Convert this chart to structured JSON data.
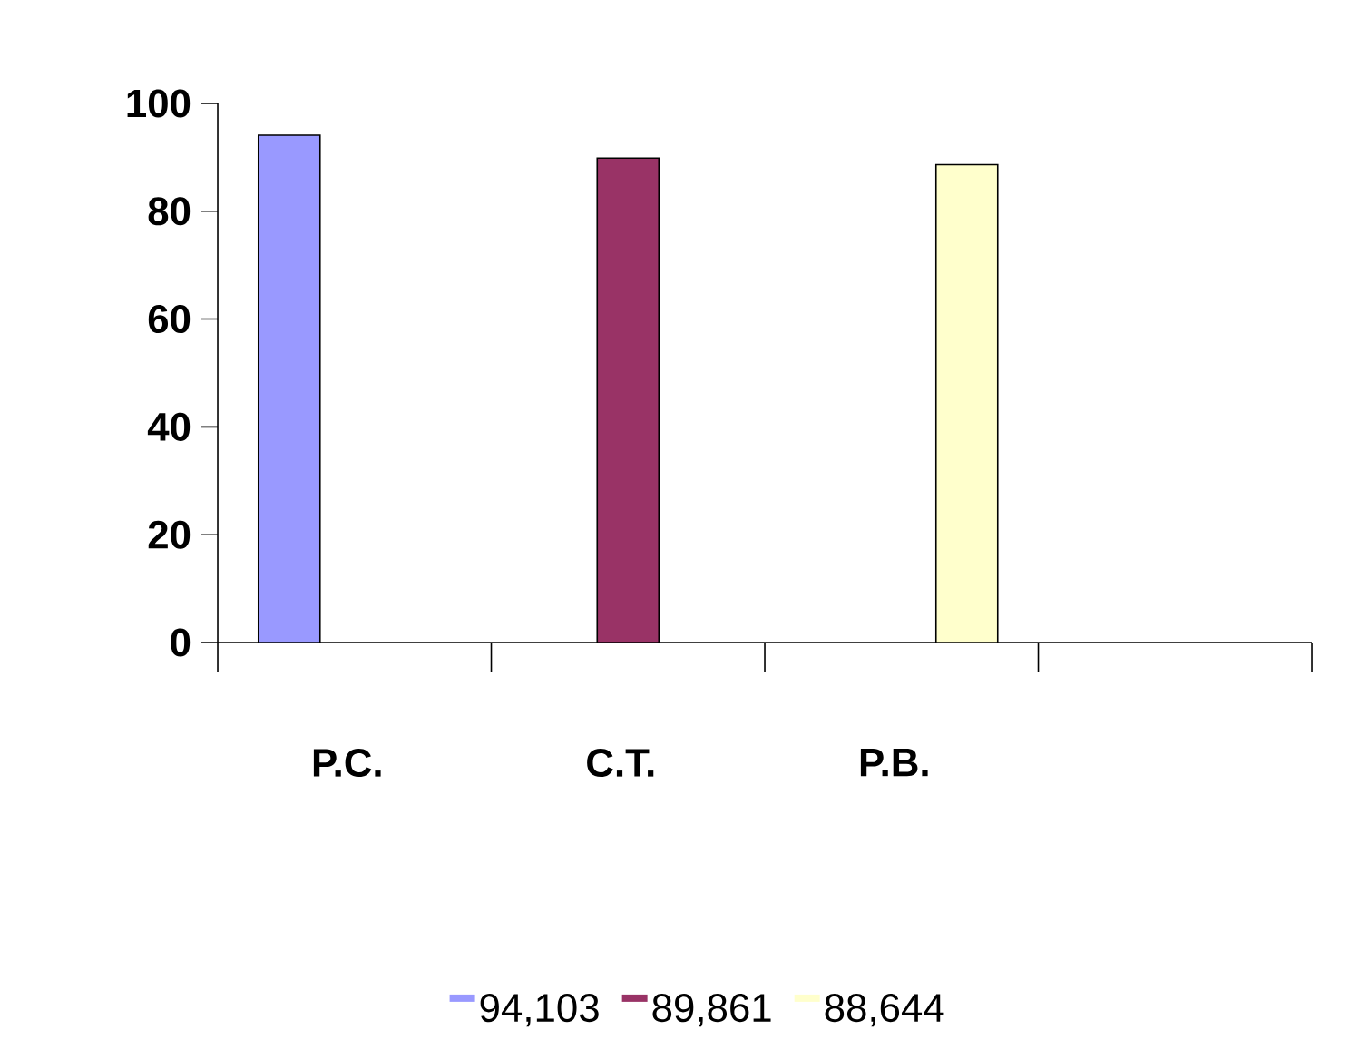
{
  "chart_data": {
    "type": "bar",
    "categories": [
      "P.C.",
      "C.T.",
      "P.B.",
      null
    ],
    "series": [
      {
        "name": "94,103",
        "color": "#9999ff",
        "values": [
          94.103,
          null,
          null,
          null
        ]
      },
      {
        "name": "89,861",
        "color": "#993366",
        "values": [
          null,
          89.861,
          null,
          null
        ]
      },
      {
        "name": "88,644",
        "color": "#ffffcc",
        "values": [
          null,
          null,
          88.644,
          null
        ]
      }
    ],
    "ylim": [
      0,
      100
    ],
    "yticks": [
      0,
      20,
      40,
      60,
      80,
      100
    ],
    "legend": "bottom",
    "grid": false
  }
}
